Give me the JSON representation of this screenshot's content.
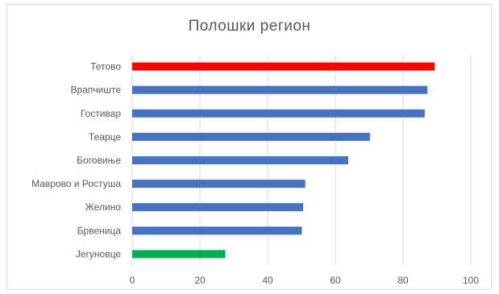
{
  "chart_data": {
    "type": "bar",
    "orientation": "horizontal",
    "title": "Полошки регион",
    "categories": [
      "Тетово",
      "Врапчиште",
      "Гостивар",
      "Теарце",
      "Боговиње",
      "Маврово и Ростуша",
      "Желино",
      "Брвеница",
      "Јегуновце"
    ],
    "values": [
      89.3,
      87.2,
      86.4,
      70.2,
      63.8,
      51.1,
      50.5,
      50.1,
      27.5
    ],
    "bar_colors": [
      "#ff0000",
      "#4472c4",
      "#4472c4",
      "#4472c4",
      "#4472c4",
      "#4472c4",
      "#4472c4",
      "#4472c4",
      "#00b050"
    ],
    "xlim": [
      0,
      100
    ],
    "x_ticks": [
      "0",
      "20",
      "40",
      "60",
      "80",
      "100"
    ],
    "grid": true,
    "legend": "none"
  }
}
